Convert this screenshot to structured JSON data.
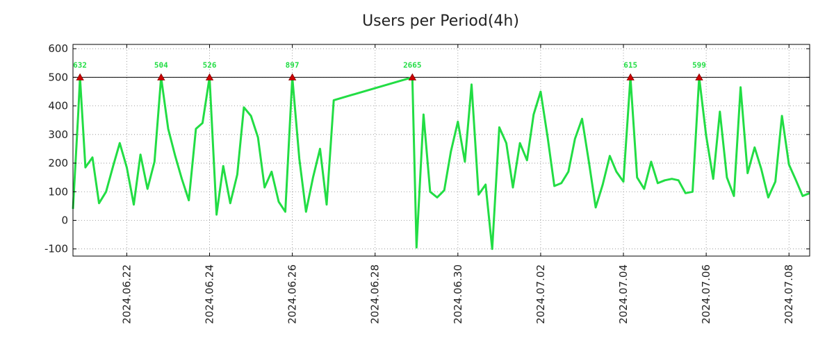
{
  "chart_data": {
    "type": "line",
    "title": "Users per Period(4h)",
    "xlabel": "",
    "ylabel": "",
    "ylim": [
      -125,
      615
    ],
    "grid": true,
    "threshold": 500,
    "x_tick_labels": [
      "2024.06.22",
      "2024.06.24",
      "2024.06.26",
      "2024.06.28",
      "2024.06.30",
      "2024.07.02",
      "2024.07.04",
      "2024.07.06",
      "2024.07.08"
    ],
    "x_tick_days": [
      21.5,
      23.5,
      25.5,
      27.5,
      29.5,
      31.5,
      33.5,
      35.5,
      37.5
    ],
    "x_range_days": [
      20.2,
      38.0
    ],
    "y_ticks": [
      600,
      500,
      400,
      300,
      200,
      100,
      0,
      -100
    ],
    "series": [
      {
        "name": "Users",
        "color": "#22dd44",
        "points": [
          [
            20.2,
            40
          ],
          [
            20.33,
            380
          ],
          [
            20.37,
            500
          ],
          [
            20.5,
            185
          ],
          [
            20.67,
            220
          ],
          [
            20.83,
            60
          ],
          [
            21.0,
            100
          ],
          [
            21.17,
            190
          ],
          [
            21.33,
            270
          ],
          [
            21.5,
            185
          ],
          [
            21.67,
            55
          ],
          [
            21.83,
            230
          ],
          [
            22.0,
            110
          ],
          [
            22.17,
            205
          ],
          [
            22.33,
            500
          ],
          [
            22.5,
            320
          ],
          [
            22.67,
            225
          ],
          [
            22.83,
            145
          ],
          [
            23.0,
            70
          ],
          [
            23.17,
            320
          ],
          [
            23.33,
            340
          ],
          [
            23.5,
            500
          ],
          [
            23.67,
            20
          ],
          [
            23.83,
            190
          ],
          [
            24.0,
            60
          ],
          [
            24.17,
            160
          ],
          [
            24.33,
            395
          ],
          [
            24.5,
            365
          ],
          [
            24.67,
            290
          ],
          [
            24.83,
            115
          ],
          [
            25.0,
            170
          ],
          [
            25.17,
            65
          ],
          [
            25.33,
            30
          ],
          [
            25.5,
            500
          ],
          [
            25.67,
            215
          ],
          [
            25.83,
            30
          ],
          [
            26.0,
            150
          ],
          [
            26.17,
            250
          ],
          [
            26.33,
            55
          ],
          [
            26.5,
            420
          ],
          [
            28.4,
            500
          ],
          [
            28.5,
            -95
          ],
          [
            28.67,
            370
          ],
          [
            28.83,
            100
          ],
          [
            29.0,
            80
          ],
          [
            29.17,
            105
          ],
          [
            29.33,
            240
          ],
          [
            29.5,
            345
          ],
          [
            29.67,
            205
          ],
          [
            29.83,
            475
          ],
          [
            30.0,
            90
          ],
          [
            30.17,
            125
          ],
          [
            30.33,
            -100
          ],
          [
            30.5,
            325
          ],
          [
            30.67,
            270
          ],
          [
            30.83,
            115
          ],
          [
            31.0,
            270
          ],
          [
            31.17,
            210
          ],
          [
            31.33,
            370
          ],
          [
            31.5,
            450
          ],
          [
            31.67,
            290
          ],
          [
            31.83,
            120
          ],
          [
            32.0,
            130
          ],
          [
            32.17,
            170
          ],
          [
            32.33,
            285
          ],
          [
            32.5,
            355
          ],
          [
            32.67,
            200
          ],
          [
            32.83,
            45
          ],
          [
            33.0,
            125
          ],
          [
            33.17,
            225
          ],
          [
            33.33,
            170
          ],
          [
            33.5,
            135
          ],
          [
            33.67,
            500
          ],
          [
            33.83,
            150
          ],
          [
            34.0,
            110
          ],
          [
            34.17,
            205
          ],
          [
            34.33,
            130
          ],
          [
            34.5,
            140
          ],
          [
            34.67,
            145
          ],
          [
            34.83,
            140
          ],
          [
            35.0,
            95
          ],
          [
            35.17,
            100
          ],
          [
            35.33,
            500
          ],
          [
            35.5,
            295
          ],
          [
            35.67,
            145
          ],
          [
            35.83,
            380
          ],
          [
            36.0,
            150
          ],
          [
            36.17,
            85
          ],
          [
            36.33,
            465
          ],
          [
            36.5,
            165
          ],
          [
            36.67,
            255
          ],
          [
            36.83,
            180
          ],
          [
            37.0,
            80
          ],
          [
            37.17,
            135
          ],
          [
            37.33,
            365
          ],
          [
            37.5,
            195
          ],
          [
            37.67,
            140
          ],
          [
            37.83,
            85
          ],
          [
            38.0,
            95
          ]
        ]
      }
    ],
    "peaks": [
      {
        "x": 20.37,
        "value": 632,
        "label": "632"
      },
      {
        "x": 22.33,
        "value": 504,
        "label": "504"
      },
      {
        "x": 23.5,
        "value": 526,
        "label": "526"
      },
      {
        "x": 25.5,
        "value": 897,
        "label": "897"
      },
      {
        "x": 28.4,
        "value": 2665,
        "label": "2665"
      },
      {
        "x": 33.67,
        "value": 615,
        "label": "615"
      },
      {
        "x": 35.33,
        "value": 599,
        "label": "599"
      }
    ],
    "colors": {
      "line": "#22dd44",
      "peak_marker": "#cc0000",
      "peak_label": "#22dd44",
      "threshold": "#000000",
      "grid": "#888888"
    }
  }
}
